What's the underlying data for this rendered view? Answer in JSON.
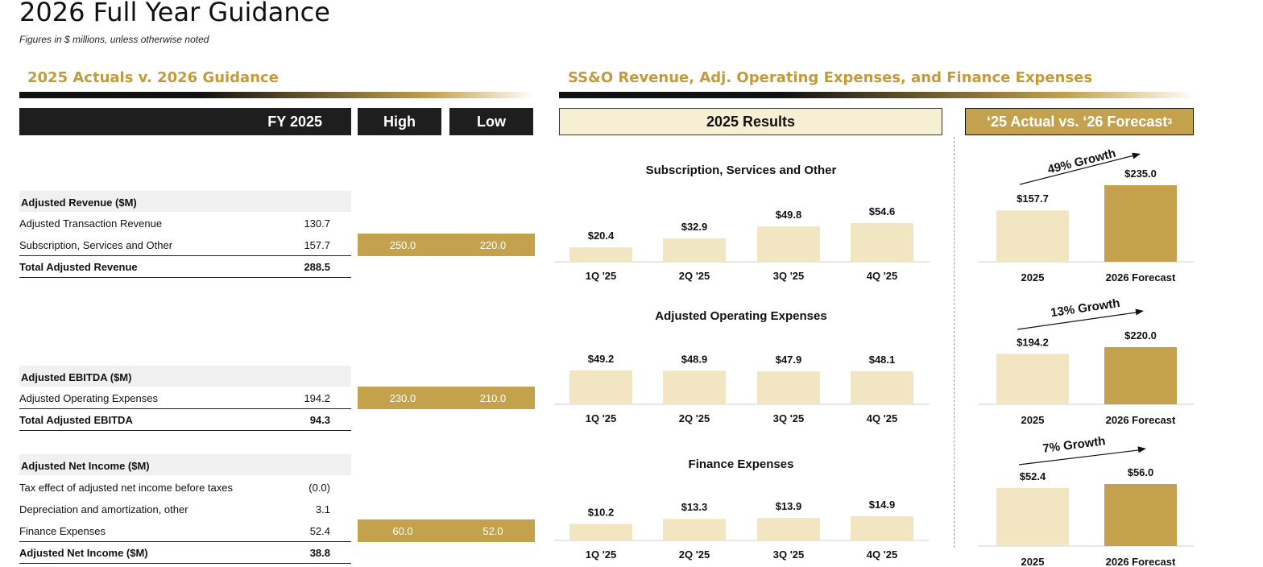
{
  "title": "2026 Full Year Guidance",
  "subtitle": "Figures in $ millions, unless otherwise noted",
  "left_section": "2025 Actuals v. 2026 Guidance",
  "right_section": "SS&O Revenue, Adj. Operating Expenses, and Finance Expenses",
  "table": {
    "headers": {
      "fy": "FY 2025",
      "high": "High",
      "low": "Low"
    },
    "groups": [
      {
        "title": "Adjusted Revenue ($M)",
        "rows": [
          {
            "label": "Adjusted Transaction Revenue",
            "value": "130.7",
            "high": "",
            "low": ""
          },
          {
            "label": "Subscription, Services and Other",
            "value": "157.7",
            "high": "250.0",
            "low": "220.0"
          },
          {
            "label": "Total Adjusted Revenue",
            "value": "288.5",
            "high": "",
            "low": ""
          }
        ]
      },
      {
        "title": "Adjusted EBITDA ($M)",
        "rows": [
          {
            "label": "Adjusted Operating Expenses",
            "value": "194.2",
            "high": "230.0",
            "low": "210.0"
          },
          {
            "label": "Total Adjusted EBITDA",
            "value": "94.3",
            "high": "",
            "low": ""
          }
        ]
      },
      {
        "title": "Adjusted Net Income ($M)",
        "rows": [
          {
            "label": "Tax effect of adjusted net income before taxes",
            "value": "(0.0)",
            "high": "",
            "low": ""
          },
          {
            "label": "Depreciation and amortization, other",
            "value": "3.1",
            "high": "",
            "low": ""
          },
          {
            "label": "Finance Expenses",
            "value": "52.4",
            "high": "60.0",
            "low": "52.0"
          },
          {
            "label": "Adjusted Net Income ($M)",
            "value": "38.8",
            "high": "",
            "low": ""
          }
        ]
      }
    ]
  },
  "results_header": "2025 Results",
  "forecast_header": "‘25 Actual vs. ‘26 Forecast",
  "forecast_sup": "3",
  "colors": {
    "gold": "#c4a24d",
    "cream": "#f2e6c2",
    "dark": "#1e1e1e",
    "accent_text": "#c49a3a"
  },
  "chart_data": [
    {
      "type": "bar",
      "title": "Subscription, Services and Other",
      "categories": [
        "1Q '25",
        "2Q '25",
        "3Q '25",
        "4Q '25"
      ],
      "values": [
        20.4,
        32.9,
        49.8,
        54.6
      ],
      "labels": [
        "$20.4",
        "$32.9",
        "$49.8",
        "$54.6"
      ]
    },
    {
      "type": "bar",
      "title": "Adjusted Operating Expenses",
      "categories": [
        "1Q '25",
        "2Q '25",
        "3Q '25",
        "4Q '25"
      ],
      "values": [
        49.2,
        48.9,
        47.9,
        48.1
      ],
      "labels": [
        "$49.2",
        "$48.9",
        "$47.9",
        "$48.1"
      ]
    },
    {
      "type": "bar",
      "title": "Finance Expenses",
      "categories": [
        "1Q '25",
        "2Q '25",
        "3Q '25",
        "4Q '25"
      ],
      "values": [
        10.2,
        13.3,
        13.9,
        14.9
      ],
      "labels": [
        "$10.2",
        "$13.3",
        "$13.9",
        "$14.9"
      ]
    },
    {
      "type": "bar",
      "title": "",
      "categories": [
        "2025",
        "2026 Forecast"
      ],
      "values": [
        157.7,
        235.0
      ],
      "labels": [
        "$157.7",
        "$235.0"
      ],
      "annotation": "49% Growth"
    },
    {
      "type": "bar",
      "title": "",
      "categories": [
        "2025",
        "2026 Forecast"
      ],
      "values": [
        194.2,
        220.0
      ],
      "labels": [
        "$194.2",
        "$220.0"
      ],
      "annotation": "13% Growth"
    },
    {
      "type": "bar",
      "title": "",
      "categories": [
        "2025",
        "2026 Forecast"
      ],
      "values": [
        52.4,
        56.0
      ],
      "labels": [
        "$52.4",
        "$56.0"
      ],
      "annotation": "7% Growth"
    }
  ]
}
